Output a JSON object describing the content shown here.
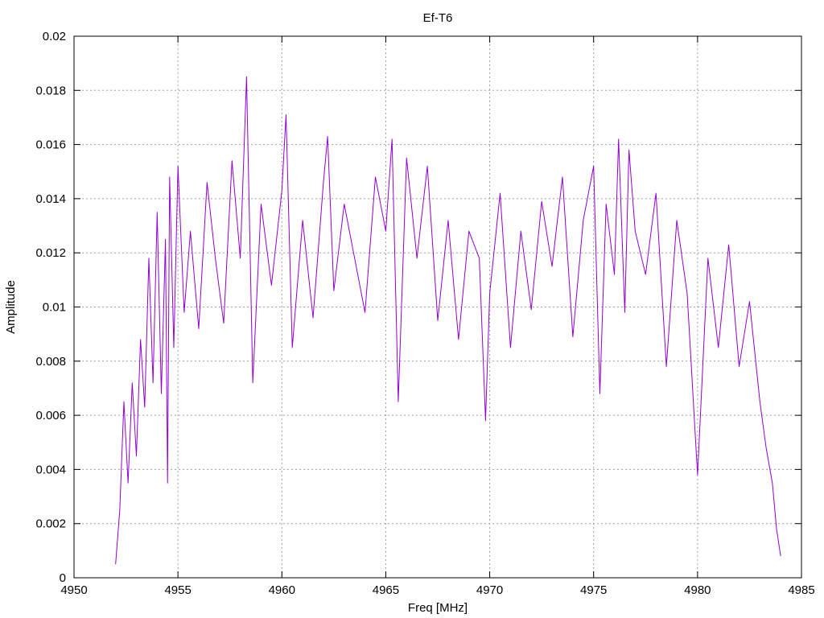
{
  "chart_data": {
    "type": "line",
    "title": "Ef-T6",
    "xlabel": "Freq [MHz]",
    "ylabel": "Amplitude",
    "xlim": [
      4950,
      4985
    ],
    "ylim": [
      0,
      0.02
    ],
    "grid": true,
    "legend": "none",
    "x_ticks": [
      4950,
      4955,
      4960,
      4965,
      4970,
      4975,
      4980,
      4985
    ],
    "x_tick_labels": [
      "4950",
      "4955",
      "4960",
      "4965",
      "4970",
      "4975",
      "4980",
      "4985"
    ],
    "y_ticks": [
      0,
      0.002,
      0.004,
      0.006,
      0.008,
      0.01,
      0.012,
      0.014,
      0.016,
      0.018,
      0.02
    ],
    "y_tick_labels": [
      "0",
      "0.002",
      "0.004",
      "0.006",
      "0.008",
      "0.01",
      "0.012",
      "0.014",
      "0.016",
      "0.018",
      "0.02"
    ],
    "series": [
      {
        "color": "#9400d3",
        "x": [
          4952.0,
          4952.2,
          4952.4,
          4952.6,
          4952.8,
          4953.0,
          4953.2,
          4953.4,
          4953.6,
          4953.8,
          4954.0,
          4954.2,
          4954.4,
          4954.5,
          4954.6,
          4954.8,
          4955.0,
          4955.3,
          4955.6,
          4956.0,
          4956.4,
          4956.8,
          4957.2,
          4957.6,
          4958.0,
          4958.3,
          4958.6,
          4959.0,
          4959.5,
          4960.0,
          4960.2,
          4960.5,
          4961.0,
          4961.5,
          4962.0,
          4962.2,
          4962.5,
          4963.0,
          4963.5,
          4964.0,
          4964.5,
          4965.0,
          4965.3,
          4965.6,
          4966.0,
          4966.5,
          4967.0,
          4967.5,
          4968.0,
          4968.5,
          4969.0,
          4969.5,
          4969.8,
          4970.0,
          4970.5,
          4971.0,
          4971.5,
          4972.0,
          4972.5,
          4973.0,
          4973.5,
          4974.0,
          4974.5,
          4975.0,
          4975.3,
          4975.6,
          4976.0,
          4976.2,
          4976.5,
          4976.7,
          4977.0,
          4977.5,
          4978.0,
          4978.5,
          4979.0,
          4979.5,
          4980.0,
          4980.5,
          4981.0,
          4981.5,
          4982.0,
          4982.5,
          4983.0,
          4983.3,
          4983.6,
          4983.8,
          4984.0
        ],
        "y": [
          0.0005,
          0.0025,
          0.0065,
          0.0035,
          0.0072,
          0.0045,
          0.0088,
          0.0063,
          0.0118,
          0.0072,
          0.0135,
          0.0068,
          0.0125,
          0.0035,
          0.0148,
          0.0085,
          0.0152,
          0.0098,
          0.0128,
          0.0092,
          0.0146,
          0.0118,
          0.0094,
          0.0154,
          0.0118,
          0.0185,
          0.0072,
          0.0138,
          0.0108,
          0.0143,
          0.0171,
          0.0085,
          0.0132,
          0.0096,
          0.0146,
          0.0163,
          0.0106,
          0.0138,
          0.0118,
          0.0098,
          0.0148,
          0.0128,
          0.0162,
          0.0065,
          0.0155,
          0.0118,
          0.0152,
          0.0095,
          0.0132,
          0.0088,
          0.0128,
          0.0118,
          0.0058,
          0.0105,
          0.0142,
          0.0085,
          0.0128,
          0.0099,
          0.0139,
          0.0115,
          0.0148,
          0.0089,
          0.0132,
          0.0152,
          0.0068,
          0.0138,
          0.0112,
          0.0162,
          0.0098,
          0.0158,
          0.0128,
          0.0112,
          0.0142,
          0.0078,
          0.0132,
          0.0105,
          0.0038,
          0.0118,
          0.0085,
          0.0123,
          0.0078,
          0.0102,
          0.0065,
          0.0048,
          0.0035,
          0.0018,
          0.0008
        ]
      }
    ]
  }
}
